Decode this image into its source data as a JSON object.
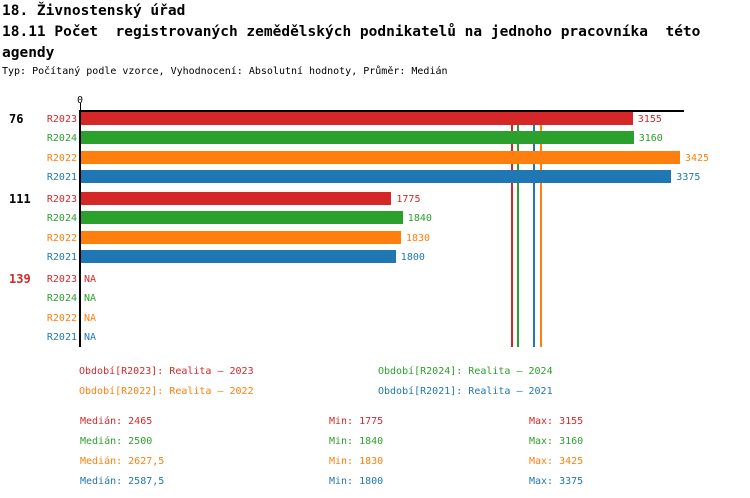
{
  "header": {
    "title": "18. Živnostenský úřad",
    "subtitle_line1": "18.11 Počet  registrovaných zemědělských podnikatelů na jednoho pracovníka  této",
    "subtitle_line2": "agendy",
    "meta": "Typ: Počítaný podle vzorce, Vyhodnocení: Absolutní hodnoty, Průměr: Medián"
  },
  "colors": {
    "R2023": "#d62728",
    "R2024": "#2ca02c",
    "R2022": "#ff7f0e",
    "R2021": "#1f77b4",
    "axis": "#000000"
  },
  "chart_data": {
    "type": "bar",
    "orientation": "horizontal",
    "axis_zero_label": "0",
    "x_range": [
      0,
      3450
    ],
    "series_order": [
      "R2023",
      "R2024",
      "R2022",
      "R2021"
    ],
    "groups": [
      {
        "label": "76",
        "label_color": "#000000",
        "bars": [
          {
            "series": "R2023",
            "value": 3155,
            "label": "3155"
          },
          {
            "series": "R2024",
            "value": 3160,
            "label": "3160"
          },
          {
            "series": "R2022",
            "value": 3425,
            "label": "3425"
          },
          {
            "series": "R2021",
            "value": 3375,
            "label": "3375"
          }
        ]
      },
      {
        "label": "111",
        "label_color": "#000000",
        "bars": [
          {
            "series": "R2023",
            "value": 1775,
            "label": "1775"
          },
          {
            "series": "R2024",
            "value": 1840,
            "label": "1840"
          },
          {
            "series": "R2022",
            "value": 1830,
            "label": "1830"
          },
          {
            "series": "R2021",
            "value": 1800,
            "label": "1800"
          }
        ]
      },
      {
        "label": "139",
        "label_color": "#d62728",
        "bars": [
          {
            "series": "R2023",
            "value": null,
            "label": "NA"
          },
          {
            "series": "R2024",
            "value": null,
            "label": "NA"
          },
          {
            "series": "R2022",
            "value": null,
            "label": "NA"
          },
          {
            "series": "R2021",
            "value": null,
            "label": "NA"
          }
        ]
      }
    ],
    "median_lines": [
      {
        "series": "R2023",
        "value": 2465
      },
      {
        "series": "R2024",
        "value": 2500
      },
      {
        "series": "R2021",
        "value": 2587.5
      },
      {
        "series": "R2022",
        "value": 2627.5
      }
    ]
  },
  "legend": [
    {
      "series": "R2023",
      "text": "Období[R2023]: Realita – 2023",
      "col": 0,
      "row": 0
    },
    {
      "series": "R2024",
      "text": "Období[R2024]: Realita – 2024",
      "col": 1,
      "row": 0
    },
    {
      "series": "R2022",
      "text": "Období[R2022]: Realita – 2022",
      "col": 0,
      "row": 1
    },
    {
      "series": "R2021",
      "text": "Období[R2021]: Realita – 2021",
      "col": 1,
      "row": 1
    }
  ],
  "stats": {
    "rows": [
      {
        "series": "R2023",
        "cells": [
          "Medián: 2465",
          "Min: 1775",
          "Max: 3155"
        ]
      },
      {
        "series": "R2024",
        "cells": [
          "Medián: 2500",
          "Min: 1840",
          "Max: 3160"
        ]
      },
      {
        "series": "R2022",
        "cells": [
          "Medián: 2627,5",
          "Min: 1830",
          "Max: 3425"
        ]
      },
      {
        "series": "R2021",
        "cells": [
          "Medián: 2587,5",
          "Min: 1800",
          "Max: 3375"
        ]
      }
    ]
  }
}
